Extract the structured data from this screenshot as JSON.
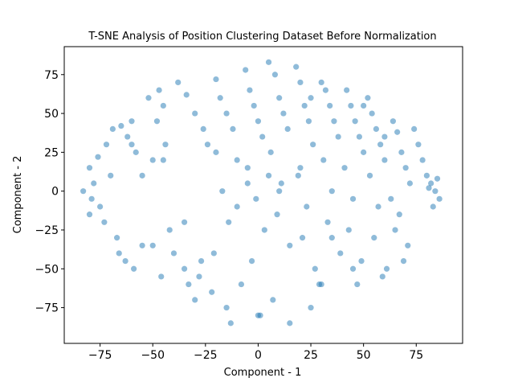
{
  "chart_data": {
    "type": "scatter",
    "title": "T-SNE Analysis of Position Clustering Dataset Before Normalization",
    "xlabel": "Component - 1",
    "ylabel": "Component - 2",
    "xlim": [
      -92,
      97
    ],
    "ylim": [
      -98,
      93
    ],
    "xticks": [
      -75,
      -50,
      -25,
      0,
      25,
      50,
      75
    ],
    "yticks": [
      -75,
      -50,
      -25,
      0,
      25,
      50,
      75
    ],
    "xtick_labels": [
      "−75",
      "−50",
      "−25",
      "0",
      "25",
      "50",
      "75"
    ],
    "ytick_labels": [
      "−75",
      "−50",
      "−25",
      "0",
      "25",
      "50",
      "75"
    ],
    "grid": false,
    "marker_color": "#1f77b4",
    "marker_alpha": 0.5,
    "series": [
      {
        "x": [
          -80,
          -78,
          -75,
          -80,
          -70,
          -76,
          -83,
          -79,
          -72,
          -73,
          -69,
          -65,
          -60,
          -62,
          -58,
          -55,
          -66,
          -63,
          -67,
          -59,
          -52,
          -47,
          -45,
          -48,
          -44,
          -55,
          -50,
          -42,
          -40,
          -46,
          -38,
          -34,
          -30,
          -26,
          -24,
          -33,
          -28,
          -35,
          -22,
          -27,
          -20,
          -18,
          -15,
          -12,
          -10,
          -17,
          -14,
          -21,
          -8,
          -13,
          -6,
          -4,
          -2,
          0,
          2,
          -5,
          -1,
          3,
          -3,
          1,
          5,
          8,
          10,
          12,
          14,
          6,
          11,
          9,
          15,
          7,
          18,
          20,
          22,
          24,
          26,
          19,
          23,
          21,
          27,
          25,
          30,
          32,
          34,
          36,
          38,
          31,
          35,
          33,
          39,
          29,
          42,
          44,
          46,
          48,
          50,
          41,
          45,
          43,
          49,
          47,
          52,
          54,
          56,
          58,
          60,
          53,
          57,
          55,
          61,
          59,
          64,
          66,
          68,
          70,
          72,
          63,
          67,
          65,
          71,
          69,
          74,
          76,
          78,
          80,
          82,
          84,
          86,
          85,
          83,
          81,
          -30,
          -15,
          0,
          15,
          30,
          45,
          -45,
          -60,
          60,
          10,
          -10,
          20,
          -20,
          35,
          -35,
          50,
          -50,
          5,
          -5,
          25
        ],
        "y": [
          15,
          5,
          -10,
          -15,
          10,
          22,
          0,
          -5,
          30,
          -20,
          40,
          42,
          45,
          35,
          25,
          -35,
          -40,
          -45,
          -30,
          -50,
          60,
          65,
          55,
          45,
          30,
          10,
          20,
          -25,
          -40,
          -55,
          70,
          62,
          50,
          40,
          30,
          -60,
          -55,
          -50,
          -65,
          -45,
          72,
          60,
          50,
          40,
          20,
          0,
          -20,
          -40,
          -60,
          -85,
          78,
          65,
          55,
          45,
          35,
          15,
          -5,
          -25,
          -45,
          -80,
          83,
          75,
          60,
          50,
          40,
          25,
          5,
          -15,
          -35,
          -70,
          80,
          70,
          55,
          45,
          30,
          10,
          -10,
          -30,
          -50,
          -75,
          70,
          65,
          55,
          45,
          35,
          20,
          0,
          -20,
          -40,
          -60,
          65,
          55,
          45,
          35,
          25,
          15,
          -5,
          -25,
          -45,
          -60,
          60,
          50,
          40,
          30,
          20,
          10,
          -10,
          -30,
          -50,
          -55,
          45,
          38,
          25,
          15,
          5,
          -5,
          -15,
          -25,
          -35,
          -45,
          40,
          30,
          20,
          10,
          5,
          0,
          -5,
          8,
          -10,
          2,
          -70,
          -75,
          -80,
          -85,
          -60,
          -50,
          20,
          30,
          35,
          0,
          -10,
          15,
          25,
          -30,
          -20,
          55,
          -35,
          10,
          5,
          60
        ]
      }
    ]
  }
}
